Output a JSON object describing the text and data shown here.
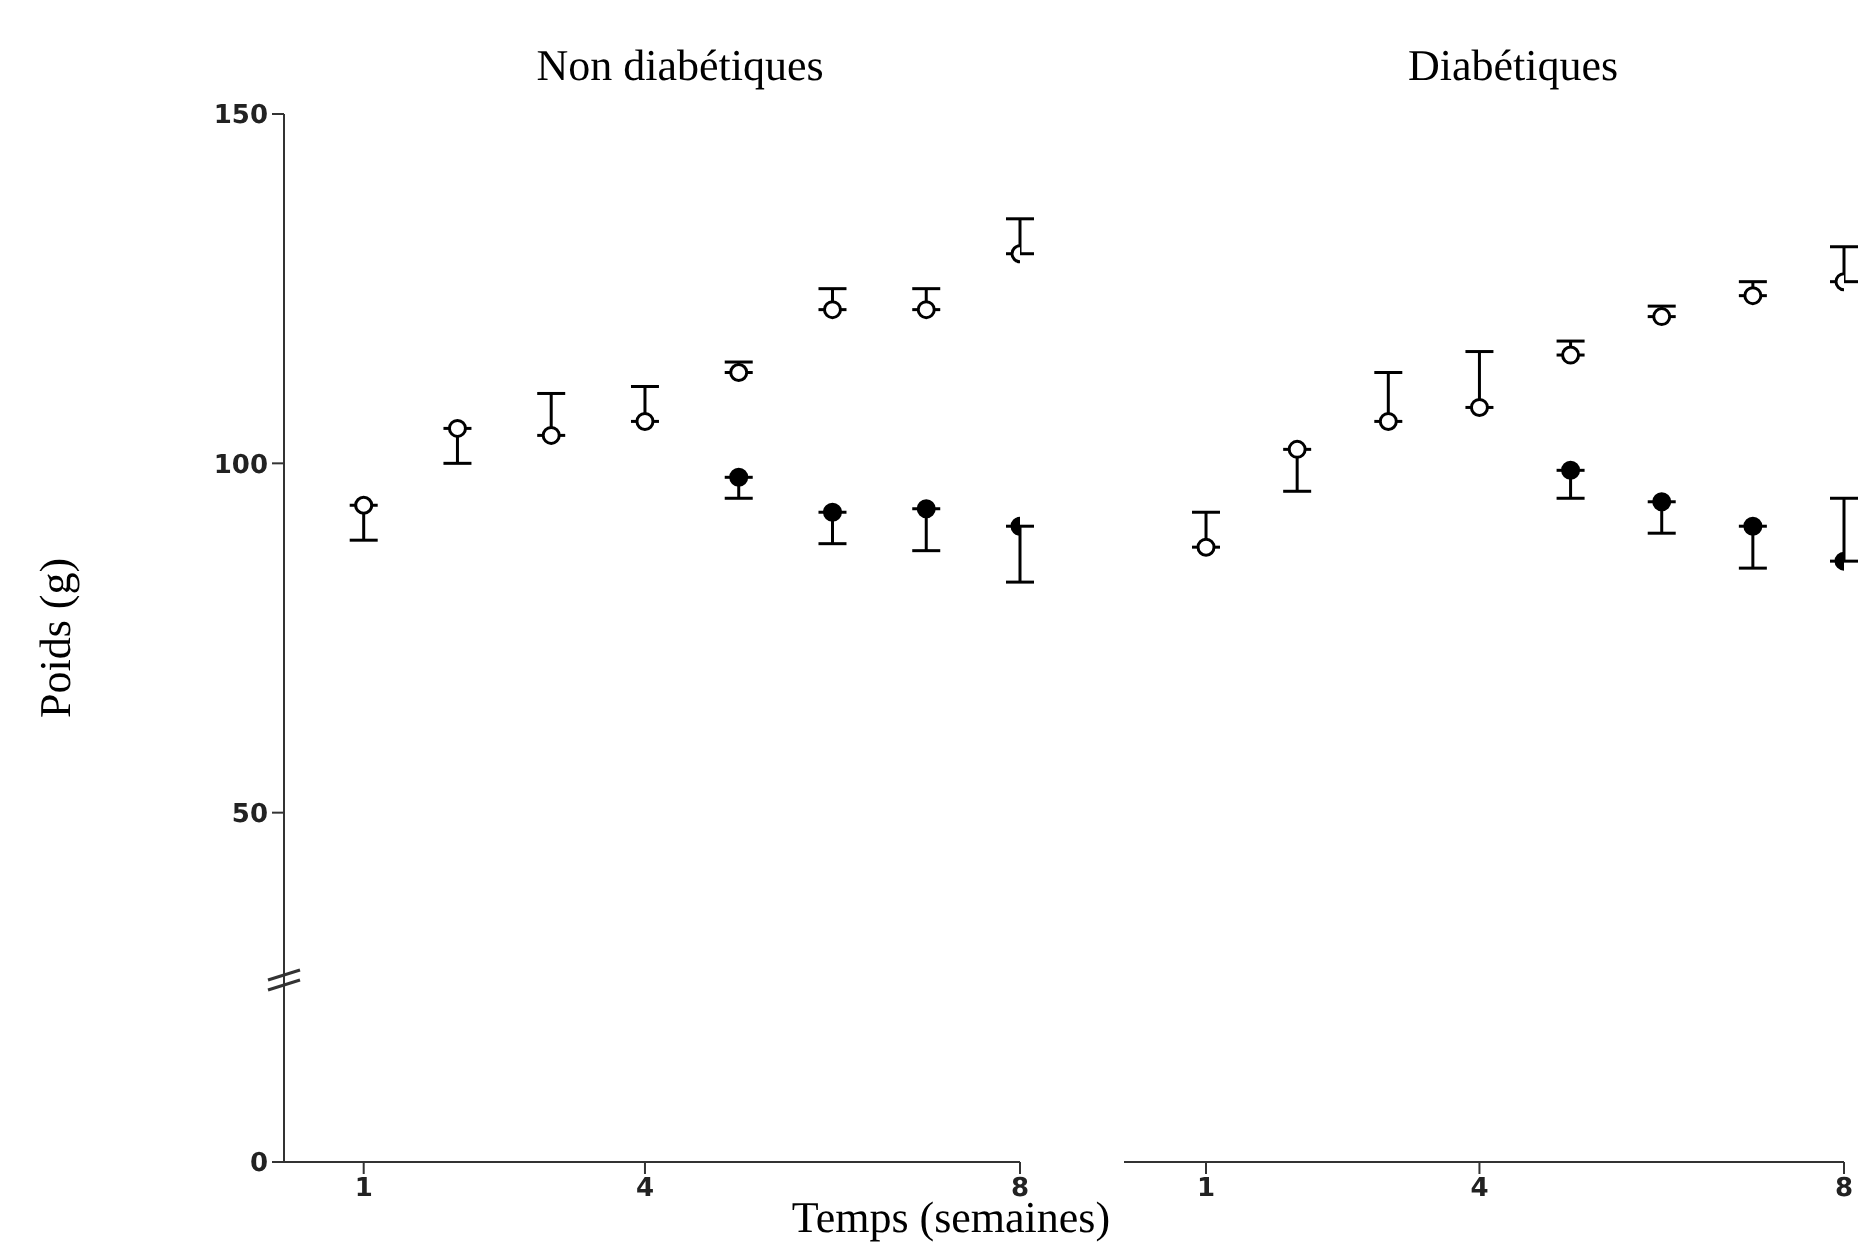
{
  "chart_data": [
    {
      "type": "scatter",
      "title": "Non diabétiques",
      "ylabel": "Poids (g)",
      "xlim": [
        0.15,
        8
      ],
      "xticks": [
        1,
        4,
        8
      ],
      "ylim": [
        0,
        150
      ],
      "yticks": [
        0,
        50,
        100,
        150
      ],
      "marker": "circle",
      "grid": false,
      "legend": false,
      "series": [
        {
          "color": "#000000",
          "x": [
            1,
            2,
            3,
            4,
            5,
            6,
            7,
            8
          ],
          "values": [
            94,
            105,
            104,
            106,
            113,
            122,
            122,
            130
          ],
          "errors": [
            [
              89,
              94
            ],
            [
              100,
              105
            ],
            [
              104,
              110
            ],
            [
              106,
              111
            ],
            [
              113,
              114.5
            ],
            [
              122,
              125
            ],
            [
              122,
              125
            ],
            [
              130,
              135
            ]
          ]
        },
        {
          "color": "#000000",
          "x": [
            5,
            6,
            7,
            8
          ],
          "values": [
            98,
            93,
            93.5,
            91
          ],
          "errors": [
            [
              95,
              98
            ],
            [
              88.5,
              93
            ],
            [
              87.5,
              93.5
            ],
            [
              83,
              91
            ]
          ]
        }
      ]
    },
    {
      "type": "scatter",
      "title": "Diabétiques",
      "xlabel": "Temps (semaines)",
      "xlim": [
        0.1,
        8
      ],
      "xticks": [
        1,
        4,
        8
      ],
      "ylim": [
        0,
        150
      ],
      "tick_labels": "x",
      "marker": "circle",
      "grid": false,
      "legend": false,
      "series": [
        {
          "color": "#000000",
          "x": [
            1,
            2,
            3,
            4,
            5,
            6,
            7,
            8
          ],
          "values": [
            88,
            102,
            106,
            108,
            115.5,
            121,
            124,
            126
          ],
          "errors": [
            [
              88,
              93
            ],
            [
              96,
              102
            ],
            [
              106,
              113
            ],
            [
              108,
              116
            ],
            [
              115.5,
              117.5
            ],
            [
              121,
              122.5
            ],
            [
              124,
              126
            ],
            [
              126,
              131
            ]
          ]
        },
        {
          "color": "#000000",
          "x": [
            5,
            6,
            7,
            8
          ],
          "values": [
            99,
            94.5,
            91,
            86
          ],
          "errors": [
            [
              95,
              99
            ],
            [
              90,
              94.5
            ],
            [
              85,
              91
            ],
            [
              86,
              95
            ]
          ]
        }
      ]
    }
  ]
}
